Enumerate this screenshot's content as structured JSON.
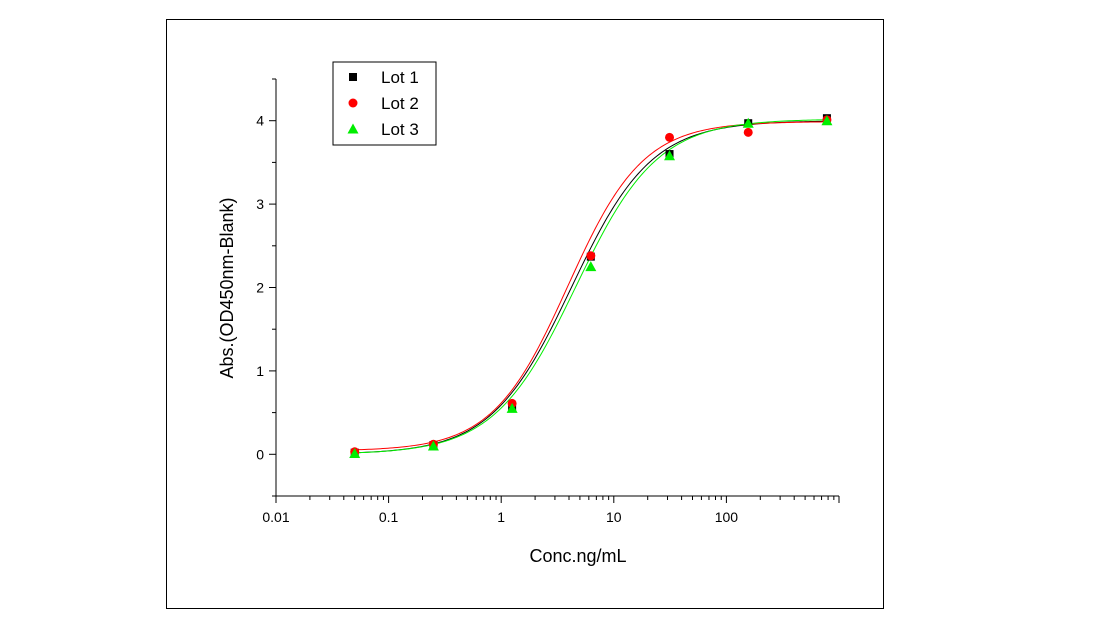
{
  "chart_data": {
    "type": "scatter",
    "xlabel": "Conc.ng/mL",
    "ylabel": "Abs.(OD450nm-Blank)",
    "x_scale": "log",
    "xlim": [
      0.01,
      1000
    ],
    "ylim": [
      -0.5,
      4.5
    ],
    "x_ticks": [
      0.01,
      0.1,
      1,
      10,
      100
    ],
    "x_tick_labels": [
      "0.01",
      "0.1",
      "1",
      "10",
      "100"
    ],
    "y_ticks": [
      0,
      1,
      2,
      3,
      4
    ],
    "y_tick_labels": [
      "0",
      "1",
      "2",
      "3",
      "4"
    ],
    "legend_position": "top-left",
    "grid": false,
    "series": [
      {
        "name": "Lot 1",
        "marker": "square",
        "color": "#000000",
        "x": [
          0.05,
          0.25,
          1.25,
          6.25,
          31.25,
          156.25,
          781.25
        ],
        "y": [
          0.02,
          0.11,
          0.57,
          2.37,
          3.6,
          3.97,
          4.03
        ],
        "fit": {
          "bottom": 0.0,
          "top": 4.0,
          "ec50": 4.2,
          "hill": 1.22
        }
      },
      {
        "name": "Lot 2",
        "marker": "circle",
        "color": "#ff0000",
        "x": [
          0.05,
          0.25,
          1.25,
          6.25,
          31.25,
          156.25,
          781.25
        ],
        "y": [
          0.03,
          0.12,
          0.61,
          2.38,
          3.8,
          3.86,
          4.01
        ],
        "fit": {
          "bottom": 0.04,
          "top": 3.99,
          "ec50": 3.9,
          "hill": 1.3
        }
      },
      {
        "name": "Lot 3",
        "marker": "triangle",
        "color": "#00ee00",
        "x": [
          0.05,
          0.25,
          1.25,
          6.25,
          31.25,
          156.25,
          781.25
        ],
        "y": [
          0.01,
          0.1,
          0.55,
          2.25,
          3.58,
          3.97,
          4.0
        ],
        "fit": {
          "bottom": 0.0,
          "top": 4.02,
          "ec50": 4.6,
          "hill": 1.2
        }
      }
    ]
  }
}
